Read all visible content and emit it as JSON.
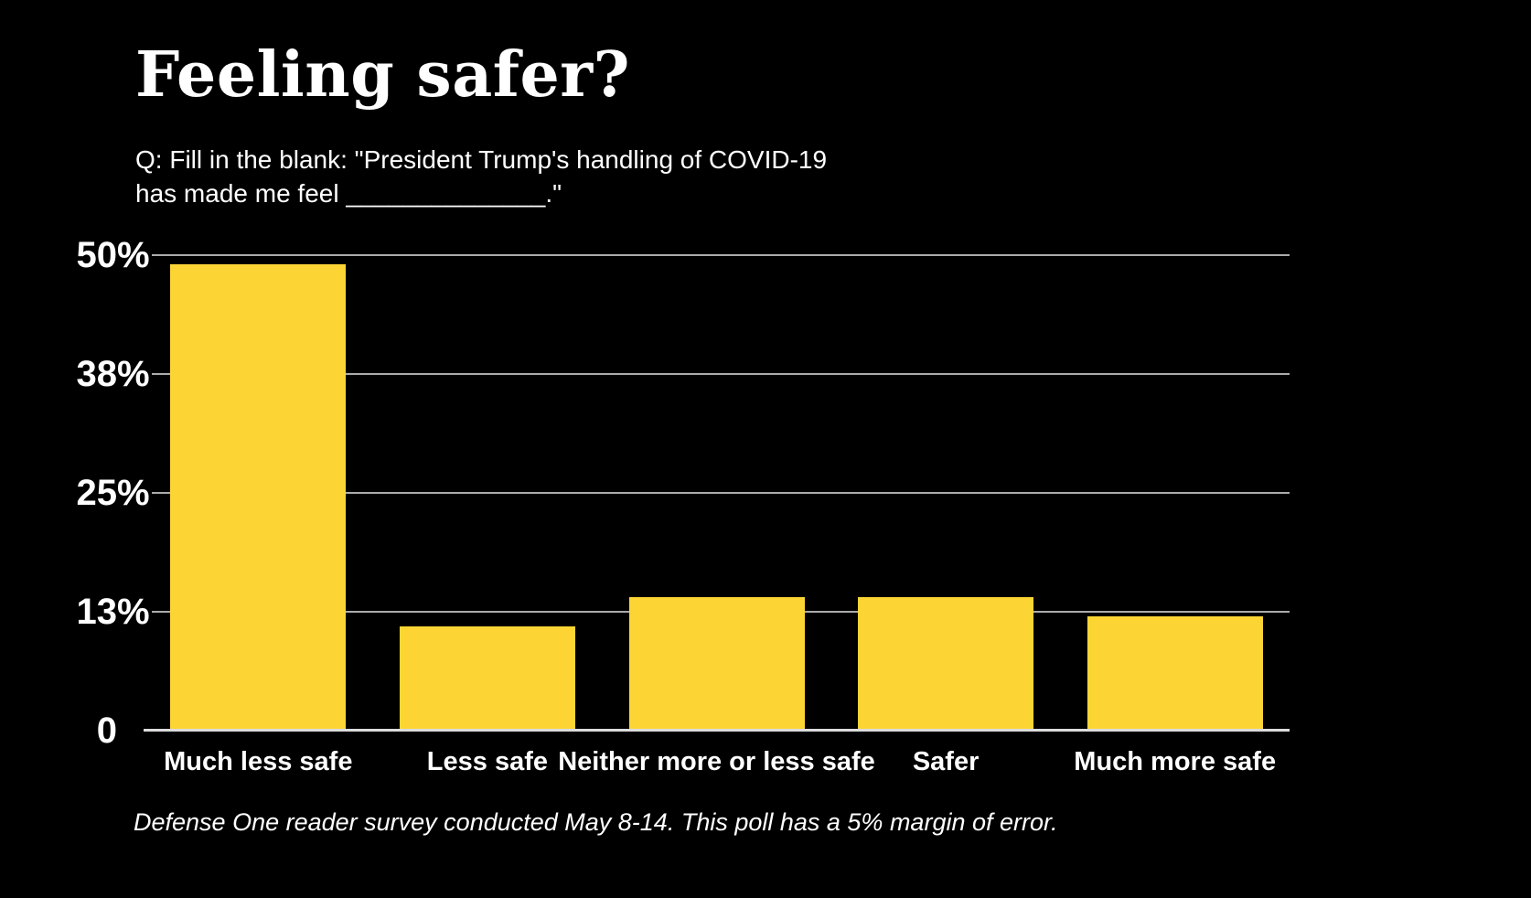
{
  "title": "Feeling safer?",
  "question": {
    "line1": "Q: Fill in the blank: \"President Trump's handling of COVID-19",
    "line2": "has made me feel ______________.\""
  },
  "footnote": "Defense One reader survey conducted May 8-14. This poll has a 5% margin of error.",
  "colors": {
    "background": "#000000",
    "bar": "#FCD535",
    "text": "#FFFFFF",
    "gridline": "#ABABAB",
    "baseline": "#DCDCDC"
  },
  "chart_data": {
    "type": "bar",
    "title": "Feeling safer?",
    "categories": [
      "Much less safe",
      "Less safe",
      "Neither more or less safe",
      "Safer",
      "Much more safe"
    ],
    "values": [
      49,
      11,
      14,
      14,
      12
    ],
    "unit": "%",
    "xlabel": "",
    "ylabel": "",
    "ylim": [
      0,
      50
    ],
    "grid": true,
    "legend": false,
    "y_ticks": [
      {
        "label": "50%",
        "value": 50
      },
      {
        "label": "38%",
        "value": 37.5
      },
      {
        "label": "25%",
        "value": 25
      },
      {
        "label": "13%",
        "value": 12.5
      },
      {
        "label": "0",
        "value": 0
      }
    ]
  }
}
